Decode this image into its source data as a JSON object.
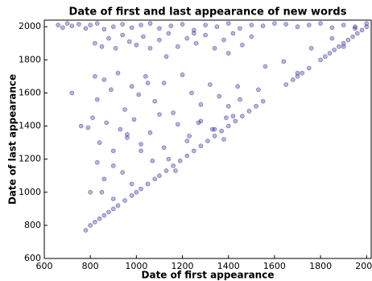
{
  "chart_data": {
    "type": "scatter",
    "title": "Date of first and last appearance of new words",
    "xlabel": "Date of first appearance",
    "ylabel": "Date of last appearance",
    "color": "#2a2aa8",
    "xlim": [
      600,
      2020
    ],
    "ylim": [
      600,
      2040
    ],
    "xticks": [
      600,
      800,
      1000,
      1200,
      1400,
      1600,
      1800,
      2000
    ],
    "yticks": [
      600,
      800,
      1000,
      1200,
      1400,
      1600,
      1800,
      2000
    ],
    "x": [
      780,
      800,
      820,
      840,
      860,
      880,
      900,
      920,
      950,
      980,
      1000,
      1020,
      1050,
      1080,
      1100,
      1130,
      1160,
      1190,
      1220,
      1250,
      1280,
      1310,
      1340,
      1370,
      1400,
      1430,
      1460,
      1490,
      1520,
      1550,
      1650,
      1680,
      1700,
      1720,
      1750,
      1800,
      1820,
      1840,
      1860,
      1880,
      1900,
      1920,
      1940,
      1960,
      1980,
      2000,
      660,
      680,
      700,
      720,
      750,
      780,
      800,
      830,
      860,
      900,
      940,
      980,
      1020,
      1060,
      1100,
      1150,
      1200,
      1250,
      1300,
      1350,
      1400,
      1450,
      1500,
      1550,
      1600,
      1650,
      1700,
      1750,
      1800,
      1850,
      1900,
      1950,
      2000,
      820,
      850,
      880,
      910,
      940,
      970,
      1000,
      1030,
      1060,
      1100,
      1140,
      1180,
      1220,
      1260,
      1300,
      1340,
      1380,
      1420,
      1460,
      1500,
      820,
      830,
      860,
      890,
      920,
      950,
      980,
      1010,
      1040,
      1080,
      1120,
      1160,
      1200,
      1240,
      1280,
      1320,
      1360,
      1400,
      1440,
      790,
      810,
      840,
      870,
      900,
      930,
      960,
      990,
      1020,
      1060,
      1100,
      1140,
      1180,
      1230,
      1280,
      1330,
      1380,
      1420,
      830,
      860,
      900,
      940,
      980,
      1020,
      1070,
      1120,
      1170,
      1220,
      1270,
      1340,
      1390,
      1450,
      1530,
      1640,
      1700,
      1760,
      1850,
      1900,
      1950,
      720,
      760,
      800,
      850,
      900,
      960,
      1050,
      1130,
      1250,
      1400,
      1560
    ],
    "y": [
      770,
      800,
      820,
      840,
      860,
      880,
      900,
      920,
      950,
      980,
      1000,
      1020,
      1050,
      1080,
      1100,
      1130,
      1160,
      1190,
      1220,
      1250,
      1280,
      1310,
      1340,
      1370,
      1400,
      1430,
      1460,
      1490,
      1520,
      1550,
      1650,
      1680,
      1700,
      1720,
      1750,
      1800,
      1820,
      1840,
      1860,
      1880,
      1900,
      1920,
      1940,
      1960,
      1980,
      2000,
      2010,
      1995,
      2020,
      2005,
      2015,
      1990,
      2010,
      2020,
      1985,
      2000,
      2015,
      1995,
      2010,
      2020,
      1990,
      2005,
      2015,
      1980,
      2010,
      2000,
      2020,
      1990,
      2010,
      2005,
      2020,
      2015,
      2000,
      2010,
      2020,
      1995,
      2010,
      2000,
      2020,
      1900,
      1880,
      1930,
      1870,
      1950,
      1910,
      1890,
      1940,
      1870,
      1920,
      1960,
      1880,
      1930,
      1900,
      1950,
      1870,
      1920,
      1960,
      1890,
      1940,
      1700,
      1560,
      1680,
      1620,
      1720,
      1500,
      1640,
      1590,
      1700,
      1550,
      1660,
      1480,
      1710,
      1600,
      1530,
      1650,
      1580,
      1520,
      1640,
      1390,
      1450,
      1300,
      1420,
      1250,
      1380,
      1330,
      1440,
      1290,
      1360,
      1470,
      1200,
      1410,
      1340,
      1430,
      1380,
      1320,
      1460,
      1180,
      1080,
      1160,
      1120,
      1050,
      1250,
      1190,
      1270,
      1130,
      1310,
      1420,
      1380,
      1450,
      1560,
      1620,
      1790,
      1720,
      1870,
      1930,
      1880,
      1990,
      1600,
      1400,
      1000,
      1000,
      960,
      1350,
      1660,
      1820,
      1960,
      1840,
      1760
    ]
  }
}
